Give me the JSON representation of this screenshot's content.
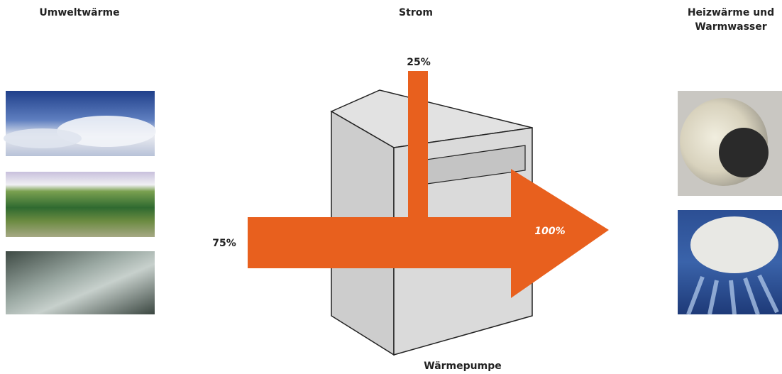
{
  "headers": {
    "left": "Umweltwärme",
    "middle": "Strom",
    "right": [
      "Heizwärme und",
      "Warmwasser"
    ]
  },
  "flows": {
    "input_electricity": "25%",
    "input_environment": "75%",
    "output": "100%"
  },
  "device": {
    "label": "Wärmepumpe"
  }
}
